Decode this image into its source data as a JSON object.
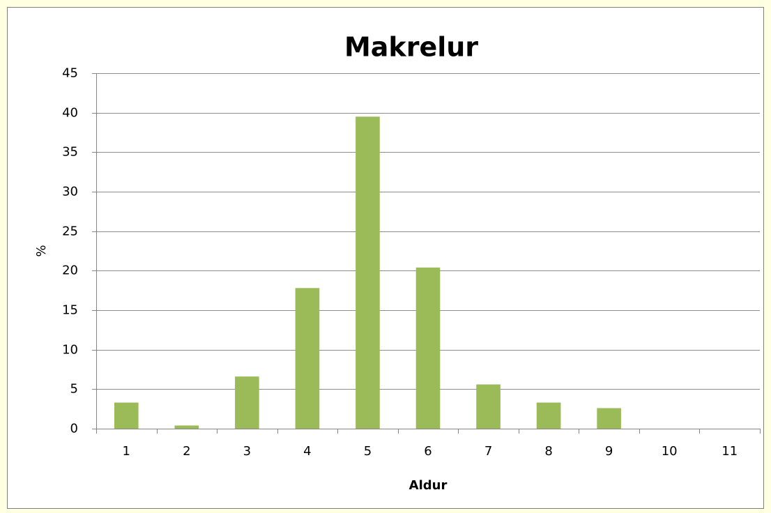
{
  "chart_data": {
    "type": "bar",
    "title": "Makrelur",
    "xlabel": "Aldur",
    "ylabel": "%",
    "categories": [
      "1",
      "2",
      "3",
      "4",
      "5",
      "6",
      "7",
      "8",
      "9",
      "10",
      "11"
    ],
    "values": [
      3.3,
      0.4,
      6.6,
      17.8,
      39.5,
      20.4,
      5.6,
      3.3,
      2.6,
      0,
      0
    ],
    "color": "#9bbb59",
    "ylim": [
      0,
      45
    ],
    "yticks": [
      0,
      5,
      10,
      15,
      20,
      25,
      30,
      35,
      40,
      45
    ],
    "grid": true
  }
}
